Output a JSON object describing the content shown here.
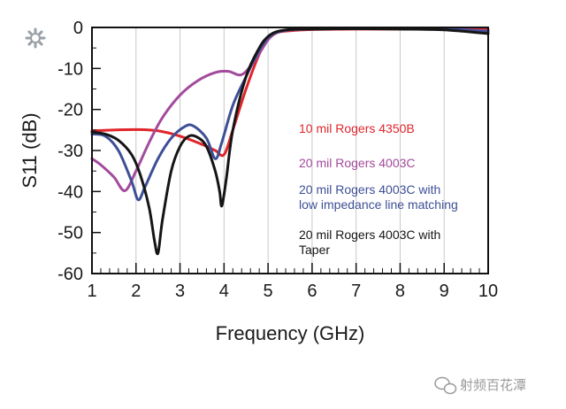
{
  "chart_data": {
    "type": "line",
    "xlabel": "Frequency (GHz)",
    "ylabel": "S11 (dB)",
    "xlim": [
      1,
      10
    ],
    "ylim": [
      -60,
      0
    ],
    "x_ticks": [
      1,
      2,
      3,
      4,
      5,
      6,
      7,
      8,
      9,
      10
    ],
    "y_ticks": [
      0,
      -10,
      -20,
      -30,
      -40,
      -50,
      -60
    ],
    "grid": "vertical only",
    "legend_position": "right, inside plot",
    "series": [
      {
        "name": "10 mil Rogers 4350B",
        "color": "#e0252b",
        "x": [
          1.0,
          1.5,
          2.0,
          2.5,
          3.0,
          3.5,
          3.8,
          4.0,
          4.2,
          4.5,
          4.8,
          5.0,
          5.2,
          5.5,
          6.0,
          7.0,
          8.0,
          9.0,
          10.0
        ],
        "y": [
          -25.2,
          -25,
          -24.9,
          -25.2,
          -26.5,
          -28.5,
          -30,
          -31,
          -25,
          -15,
          -6.5,
          -3,
          -1.3,
          -0.8,
          -0.5,
          -0.4,
          -0.4,
          -0.4,
          -0.5
        ]
      },
      {
        "name": "20 mil Rogers 4003C",
        "color": "#a34a9c",
        "x": [
          1.0,
          1.2,
          1.5,
          1.75,
          2.0,
          2.3,
          2.6,
          3.0,
          3.4,
          3.8,
          4.1,
          4.4,
          4.7,
          5.0,
          5.2,
          5.5,
          6.0,
          7.0,
          8.0,
          9.0,
          10.0
        ],
        "y": [
          -32,
          -33.5,
          -36.5,
          -39.8,
          -35,
          -28,
          -22,
          -16.5,
          -13,
          -11,
          -10.7,
          -11.5,
          -8,
          -3,
          -1.2,
          -0.6,
          -0.4,
          -0.3,
          -0.3,
          -0.4,
          -0.8
        ]
      },
      {
        "name": "20 mil Rogers 4003C with low impedance line matching",
        "color": "#3d4f95",
        "x": [
          1.0,
          1.3,
          1.6,
          1.9,
          2.05,
          2.2,
          2.5,
          2.8,
          3.1,
          3.3,
          3.6,
          3.8,
          3.95,
          4.2,
          4.5,
          4.8,
          5.0,
          5.2,
          5.5,
          6.0,
          7.0,
          8.0,
          9.0,
          10.0
        ],
        "y": [
          -26,
          -26.5,
          -30,
          -37.5,
          -42,
          -39,
          -32,
          -27,
          -24.2,
          -24,
          -27,
          -32,
          -28,
          -19,
          -12,
          -5.5,
          -2.5,
          -1.2,
          -0.6,
          -0.4,
          -0.3,
          -0.3,
          -0.4,
          -1
        ]
      },
      {
        "name": "20 mil Rogers 4003C with Taper",
        "color": "#151515",
        "x": [
          1.0,
          1.3,
          1.6,
          1.9,
          2.1,
          2.3,
          2.42,
          2.5,
          2.6,
          2.8,
          3.0,
          3.2,
          3.4,
          3.6,
          3.8,
          3.9,
          3.95,
          4.05,
          4.2,
          4.5,
          4.8,
          5.0,
          5.2,
          5.5,
          6.0,
          7.0,
          8.0,
          9.0,
          10.0
        ],
        "y": [
          -25.5,
          -26,
          -27.5,
          -31,
          -36,
          -44,
          -52,
          -55,
          -47,
          -35,
          -29,
          -26.5,
          -26.8,
          -29,
          -35,
          -40,
          -43.5,
          -37,
          -25,
          -12,
          -5,
          -2.2,
          -1,
          -0.5,
          -0.4,
          -0.3,
          -0.4,
          -0.6,
          -1.5
        ]
      }
    ],
    "legend": [
      {
        "lines": [
          "10 mil Rogers 4350B"
        ],
        "color": "#e0252b"
      },
      {
        "lines": [
          "20 mil Rogers 4003C"
        ],
        "color": "#a34a9c"
      },
      {
        "lines": [
          "20 mil Rogers 4003C with",
          "low impedance line matching"
        ],
        "color": "#3d4f95"
      },
      {
        "lines": [
          "20 mil Rogers 4003C with",
          "Taper"
        ],
        "color": "#151515"
      }
    ]
  },
  "watermark": {
    "text": "射频百花潭",
    "icon": "wechat-icon"
  },
  "corner_icon": "gear-icon"
}
